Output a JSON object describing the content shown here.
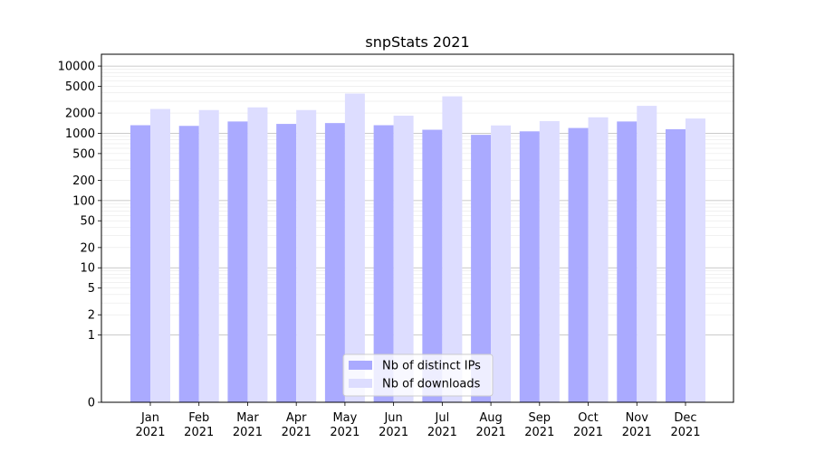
{
  "chart_data": {
    "type": "bar",
    "title": "snpStats 2021",
    "xlabel": "",
    "ylabel": "",
    "yscale": "symlog",
    "ylim": [
      0,
      15000
    ],
    "yticks": [
      0,
      1,
      2,
      5,
      10,
      20,
      50,
      100,
      200,
      500,
      1000,
      2000,
      5000,
      10000
    ],
    "ytick_labels": [
      "0",
      "1",
      "2",
      "5",
      "10",
      "20",
      "50",
      "100",
      "200",
      "500",
      "1000",
      "2000",
      "5000",
      "10000"
    ],
    "grid": true,
    "legend": "lower-center",
    "categories": [
      [
        "Jan",
        "2021"
      ],
      [
        "Feb",
        "2021"
      ],
      [
        "Mar",
        "2021"
      ],
      [
        "Apr",
        "2021"
      ],
      [
        "May",
        "2021"
      ],
      [
        "Jun",
        "2021"
      ],
      [
        "Jul",
        "2021"
      ],
      [
        "Aug",
        "2021"
      ],
      [
        "Sep",
        "2021"
      ],
      [
        "Oct",
        "2021"
      ],
      [
        "Nov",
        "2021"
      ],
      [
        "Dec",
        "2021"
      ]
    ],
    "series": [
      {
        "name": "Nb of distinct IPs",
        "color": "#aaaaff",
        "values": [
          1320,
          1290,
          1500,
          1380,
          1420,
          1320,
          1130,
          950,
          1070,
          1200,
          1500,
          1150
        ]
      },
      {
        "name": "Nb of downloads",
        "color": "#ddddff",
        "values": [
          2300,
          2220,
          2430,
          2220,
          3900,
          1830,
          3550,
          1310,
          1520,
          1730,
          2560,
          1660
        ]
      }
    ]
  }
}
